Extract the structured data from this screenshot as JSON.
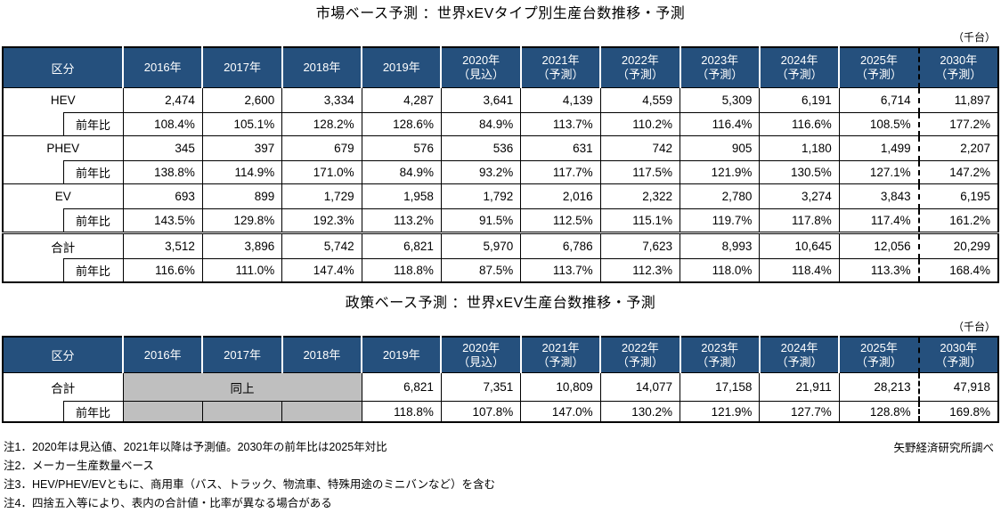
{
  "colors": {
    "header_bg": "#25507D",
    "header_text": "#FFFFFF",
    "disabled_cell_gray": "#BFBFBF",
    "border": "#000000"
  },
  "table1": {
    "title": "市場ベース予測 ：世界xEVタイプ別生産台数推移・予測",
    "unit": "（千台）",
    "corner_label": "区分",
    "yoy_label": "前年比",
    "columns": [
      [
        "2016年",
        ""
      ],
      [
        "2017年",
        ""
      ],
      [
        "2018年",
        ""
      ],
      [
        "2019年",
        ""
      ],
      [
        "2020年",
        "（見込）"
      ],
      [
        "2021年",
        "（予測）"
      ],
      [
        "2022年",
        "（予測）"
      ],
      [
        "2023年",
        "（予測）"
      ],
      [
        "2024年",
        "（予測）"
      ],
      [
        "2025年",
        "（予測）"
      ],
      [
        "2030年",
        "（予測）"
      ]
    ],
    "groups": [
      {
        "label": "HEV",
        "values": [
          "2,474",
          "2,600",
          "3,334",
          "4,287",
          "3,641",
          "4,139",
          "4,559",
          "5,309",
          "6,191",
          "6,714",
          "11,897"
        ],
        "yoy": [
          "108.4%",
          "105.1%",
          "128.2%",
          "128.6%",
          "84.9%",
          "113.7%",
          "110.2%",
          "116.4%",
          "116.6%",
          "108.5%",
          "177.2%"
        ]
      },
      {
        "label": "PHEV",
        "values": [
          "345",
          "397",
          "679",
          "576",
          "536",
          "631",
          "742",
          "905",
          "1,180",
          "1,499",
          "2,207"
        ],
        "yoy": [
          "138.8%",
          "114.9%",
          "171.0%",
          "84.9%",
          "93.2%",
          "117.7%",
          "117.5%",
          "121.9%",
          "130.5%",
          "127.1%",
          "147.2%"
        ]
      },
      {
        "label": "EV",
        "values": [
          "693",
          "899",
          "1,729",
          "1,958",
          "1,792",
          "2,016",
          "2,322",
          "2,780",
          "3,274",
          "3,843",
          "6,195"
        ],
        "yoy": [
          "143.5%",
          "129.8%",
          "192.3%",
          "113.2%",
          "91.5%",
          "112.5%",
          "115.1%",
          "119.7%",
          "117.8%",
          "117.4%",
          "161.2%"
        ]
      },
      {
        "label": "合計",
        "double_top": true,
        "values": [
          "3,512",
          "3,896",
          "5,742",
          "6,821",
          "5,970",
          "6,786",
          "7,623",
          "8,993",
          "10,645",
          "12,056",
          "20,299"
        ],
        "yoy": [
          "116.6%",
          "111.0%",
          "147.4%",
          "118.8%",
          "87.5%",
          "113.7%",
          "112.3%",
          "118.0%",
          "118.4%",
          "113.3%",
          "168.4%"
        ]
      }
    ]
  },
  "table2": {
    "title": "政策ベース予測 ：世界xEV生産台数推移・予測",
    "unit": "（千台）",
    "corner_label": "区分",
    "yoy_label": "前年比",
    "columns": [
      [
        "2016年",
        ""
      ],
      [
        "2017年",
        ""
      ],
      [
        "2018年",
        ""
      ],
      [
        "2019年",
        ""
      ],
      [
        "2020年",
        "（見込）"
      ],
      [
        "2021年",
        "（予測）"
      ],
      [
        "2022年",
        "（予測）"
      ],
      [
        "2023年",
        "（予測）"
      ],
      [
        "2024年",
        "（予測）"
      ],
      [
        "2025年",
        "（予測）"
      ],
      [
        "2030年",
        "（予測）"
      ]
    ],
    "groups": [
      {
        "label": "合計",
        "same_label": "同上",
        "gray_span": 3,
        "values": [
          "6,821",
          "7,351",
          "10,809",
          "14,077",
          "17,158",
          "21,911",
          "28,213",
          "47,918"
        ],
        "yoy": [
          "118.8%",
          "107.8%",
          "147.0%",
          "130.2%",
          "121.9%",
          "127.7%",
          "128.8%",
          "169.8%"
        ]
      }
    ]
  },
  "notes": [
    "注1．2020年は見込値、2021年以降は予測値。2030年の前年比は2025年対比",
    "注2．メーカー生産数量ベース",
    "注3．HEV/PHEV/EVともに、商用車（バス、トラック、物流車、特殊用途のミニバンなど）を含む",
    "注4．四捨五入等により、表内の合計値・比率が異なる場合がある"
  ],
  "credit": "矢野経済研究所調べ"
}
